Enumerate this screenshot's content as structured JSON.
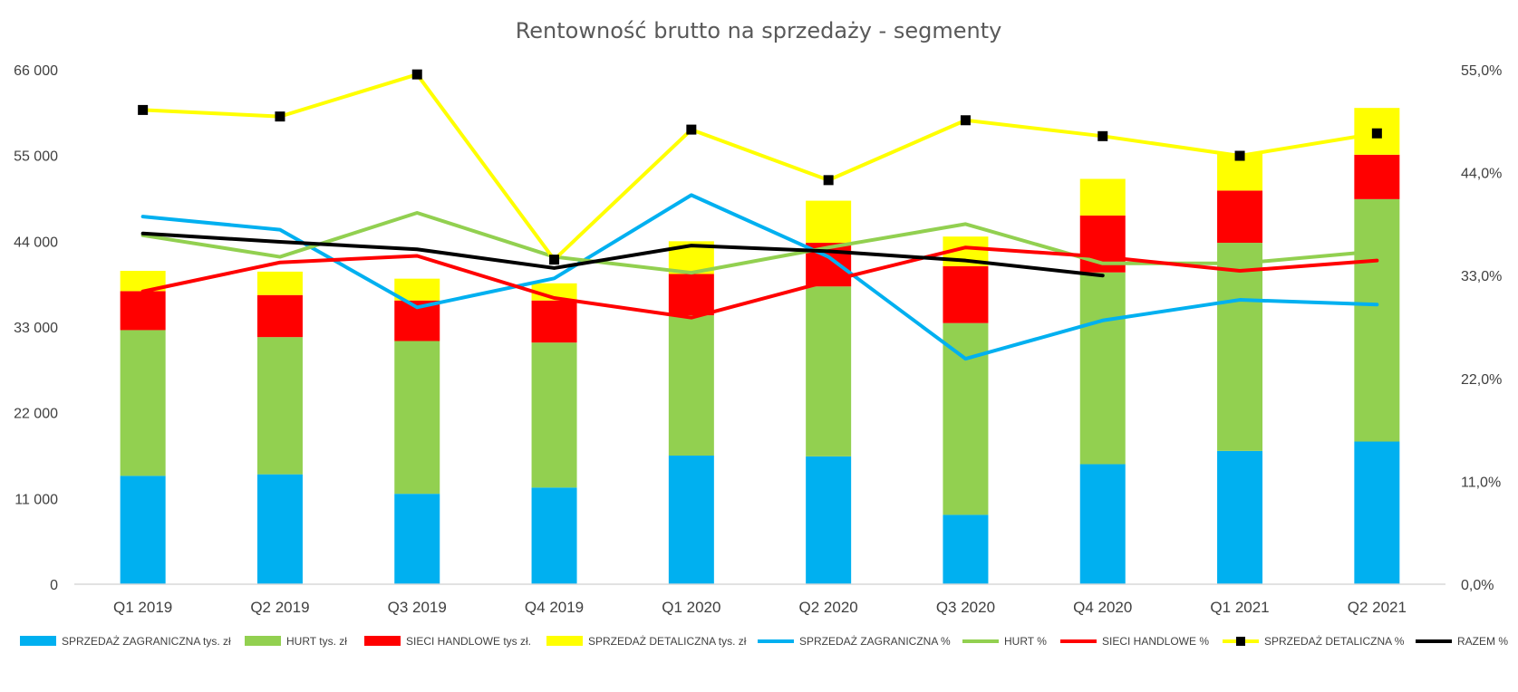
{
  "chart_data": {
    "type": "bar",
    "stacked": true,
    "title": "Rentowność brutto na sprzedaży - segmenty",
    "categories": [
      "Q1 2019",
      "Q2 2019",
      "Q3 2019",
      "Q4 2019",
      "Q1 2020",
      "Q2 2020",
      "Q3 2020",
      "Q4 2020",
      "Q1 2021",
      "Q2 2021"
    ],
    "y_left": {
      "ticks": [
        0,
        11000,
        22000,
        33000,
        44000,
        55000,
        66000
      ],
      "tick_labels": [
        "0",
        "11 000",
        "22 000",
        "33 000",
        "44 000",
        "55 000",
        "66 000"
      ],
      "ylim": [
        0,
        66000
      ]
    },
    "y_right": {
      "ticks": [
        0,
        11,
        22,
        33,
        44,
        55
      ],
      "tick_labels": [
        "0,0%",
        "11,0%",
        "22,0%",
        "33,0%",
        "44,0%",
        "55,0%"
      ],
      "ylim": [
        0,
        55
      ]
    },
    "bar_series": [
      {
        "name": "SPRZEDAŻ ZAGRANICZNA tys. zł",
        "color": "#00B0F0",
        "values": [
          13900,
          14100,
          11600,
          12400,
          16500,
          16400,
          8900,
          15400,
          17100,
          18300
        ]
      },
      {
        "name": "HURT tys. zł",
        "color": "#92D050",
        "values": [
          18700,
          17600,
          19600,
          18600,
          18000,
          21800,
          24600,
          24600,
          26700,
          31100
        ]
      },
      {
        "name": "SIECI HANDLOWE tys zł.",
        "color": "#FF0000",
        "values": [
          5000,
          5400,
          5200,
          5400,
          5300,
          5600,
          7300,
          7300,
          6700,
          5700
        ]
      },
      {
        "name": "SPRZEDAŻ DETALICZNA tys. zł",
        "color": "#FFFF00",
        "values": [
          2600,
          3000,
          2800,
          2200,
          4200,
          5400,
          3800,
          4700,
          4800,
          6000
        ]
      }
    ],
    "line_series": [
      {
        "name": "SPRZEDAŻ ZAGRANICZNA %",
        "color": "#00B0F0",
        "values": [
          39.3,
          37.9,
          29.6,
          32.7,
          41.6,
          35.0,
          24.1,
          28.2,
          30.4,
          29.9
        ]
      },
      {
        "name": "HURT %",
        "color": "#92D050",
        "values": [
          37.3,
          35.0,
          39.7,
          35.0,
          33.3,
          36.0,
          38.5,
          34.3,
          34.3,
          35.6
        ]
      },
      {
        "name": "SIECI HANDLOWE %",
        "color": "#FF0000",
        "values": [
          31.3,
          34.4,
          35.1,
          30.6,
          28.5,
          32.4,
          36.0,
          35.0,
          33.5,
          34.6
        ]
      },
      {
        "name": "SPRZEDAŻ DETALICZNA %",
        "color": "#FFFF00",
        "marker": "square",
        "marker_color": "#000000",
        "values": [
          50.7,
          50.0,
          54.5,
          34.7,
          48.6,
          43.2,
          49.6,
          47.9,
          45.8,
          48.2
        ]
      },
      {
        "name": "RAZEM %",
        "color": "#000000",
        "values": [
          37.5,
          36.6,
          35.8,
          33.8,
          36.2,
          35.6,
          34.6,
          33.0,
          null,
          null
        ]
      }
    ],
    "legend_position": "bottom",
    "grid": false
  }
}
